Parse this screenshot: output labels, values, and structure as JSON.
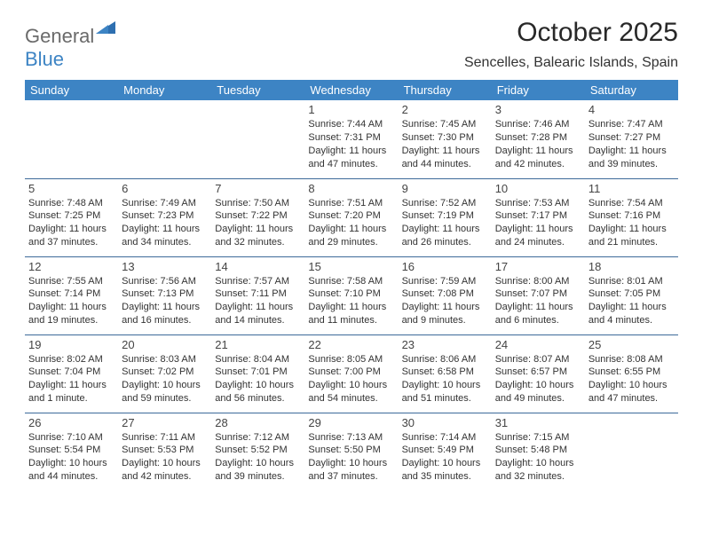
{
  "logo": {
    "part1": "General",
    "part2": "Blue"
  },
  "title": "October 2025",
  "subtitle": "Sencelles, Balearic Islands, Spain",
  "colors": {
    "header_bg": "#3d84c4",
    "header_fg": "#ffffff",
    "rule": "#3d6a9a"
  },
  "day_headers": [
    "Sunday",
    "Monday",
    "Tuesday",
    "Wednesday",
    "Thursday",
    "Friday",
    "Saturday"
  ],
  "weeks": [
    [
      null,
      null,
      null,
      {
        "num": "1",
        "sunrise": "Sunrise: 7:44 AM",
        "sunset": "Sunset: 7:31 PM",
        "day1": "Daylight: 11 hours",
        "day2": "and 47 minutes."
      },
      {
        "num": "2",
        "sunrise": "Sunrise: 7:45 AM",
        "sunset": "Sunset: 7:30 PM",
        "day1": "Daylight: 11 hours",
        "day2": "and 44 minutes."
      },
      {
        "num": "3",
        "sunrise": "Sunrise: 7:46 AM",
        "sunset": "Sunset: 7:28 PM",
        "day1": "Daylight: 11 hours",
        "day2": "and 42 minutes."
      },
      {
        "num": "4",
        "sunrise": "Sunrise: 7:47 AM",
        "sunset": "Sunset: 7:27 PM",
        "day1": "Daylight: 11 hours",
        "day2": "and 39 minutes."
      }
    ],
    [
      {
        "num": "5",
        "sunrise": "Sunrise: 7:48 AM",
        "sunset": "Sunset: 7:25 PM",
        "day1": "Daylight: 11 hours",
        "day2": "and 37 minutes."
      },
      {
        "num": "6",
        "sunrise": "Sunrise: 7:49 AM",
        "sunset": "Sunset: 7:23 PM",
        "day1": "Daylight: 11 hours",
        "day2": "and 34 minutes."
      },
      {
        "num": "7",
        "sunrise": "Sunrise: 7:50 AM",
        "sunset": "Sunset: 7:22 PM",
        "day1": "Daylight: 11 hours",
        "day2": "and 32 minutes."
      },
      {
        "num": "8",
        "sunrise": "Sunrise: 7:51 AM",
        "sunset": "Sunset: 7:20 PM",
        "day1": "Daylight: 11 hours",
        "day2": "and 29 minutes."
      },
      {
        "num": "9",
        "sunrise": "Sunrise: 7:52 AM",
        "sunset": "Sunset: 7:19 PM",
        "day1": "Daylight: 11 hours",
        "day2": "and 26 minutes."
      },
      {
        "num": "10",
        "sunrise": "Sunrise: 7:53 AM",
        "sunset": "Sunset: 7:17 PM",
        "day1": "Daylight: 11 hours",
        "day2": "and 24 minutes."
      },
      {
        "num": "11",
        "sunrise": "Sunrise: 7:54 AM",
        "sunset": "Sunset: 7:16 PM",
        "day1": "Daylight: 11 hours",
        "day2": "and 21 minutes."
      }
    ],
    [
      {
        "num": "12",
        "sunrise": "Sunrise: 7:55 AM",
        "sunset": "Sunset: 7:14 PM",
        "day1": "Daylight: 11 hours",
        "day2": "and 19 minutes."
      },
      {
        "num": "13",
        "sunrise": "Sunrise: 7:56 AM",
        "sunset": "Sunset: 7:13 PM",
        "day1": "Daylight: 11 hours",
        "day2": "and 16 minutes."
      },
      {
        "num": "14",
        "sunrise": "Sunrise: 7:57 AM",
        "sunset": "Sunset: 7:11 PM",
        "day1": "Daylight: 11 hours",
        "day2": "and 14 minutes."
      },
      {
        "num": "15",
        "sunrise": "Sunrise: 7:58 AM",
        "sunset": "Sunset: 7:10 PM",
        "day1": "Daylight: 11 hours",
        "day2": "and 11 minutes."
      },
      {
        "num": "16",
        "sunrise": "Sunrise: 7:59 AM",
        "sunset": "Sunset: 7:08 PM",
        "day1": "Daylight: 11 hours",
        "day2": "and 9 minutes."
      },
      {
        "num": "17",
        "sunrise": "Sunrise: 8:00 AM",
        "sunset": "Sunset: 7:07 PM",
        "day1": "Daylight: 11 hours",
        "day2": "and 6 minutes."
      },
      {
        "num": "18",
        "sunrise": "Sunrise: 8:01 AM",
        "sunset": "Sunset: 7:05 PM",
        "day1": "Daylight: 11 hours",
        "day2": "and 4 minutes."
      }
    ],
    [
      {
        "num": "19",
        "sunrise": "Sunrise: 8:02 AM",
        "sunset": "Sunset: 7:04 PM",
        "day1": "Daylight: 11 hours",
        "day2": "and 1 minute."
      },
      {
        "num": "20",
        "sunrise": "Sunrise: 8:03 AM",
        "sunset": "Sunset: 7:02 PM",
        "day1": "Daylight: 10 hours",
        "day2": "and 59 minutes."
      },
      {
        "num": "21",
        "sunrise": "Sunrise: 8:04 AM",
        "sunset": "Sunset: 7:01 PM",
        "day1": "Daylight: 10 hours",
        "day2": "and 56 minutes."
      },
      {
        "num": "22",
        "sunrise": "Sunrise: 8:05 AM",
        "sunset": "Sunset: 7:00 PM",
        "day1": "Daylight: 10 hours",
        "day2": "and 54 minutes."
      },
      {
        "num": "23",
        "sunrise": "Sunrise: 8:06 AM",
        "sunset": "Sunset: 6:58 PM",
        "day1": "Daylight: 10 hours",
        "day2": "and 51 minutes."
      },
      {
        "num": "24",
        "sunrise": "Sunrise: 8:07 AM",
        "sunset": "Sunset: 6:57 PM",
        "day1": "Daylight: 10 hours",
        "day2": "and 49 minutes."
      },
      {
        "num": "25",
        "sunrise": "Sunrise: 8:08 AM",
        "sunset": "Sunset: 6:55 PM",
        "day1": "Daylight: 10 hours",
        "day2": "and 47 minutes."
      }
    ],
    [
      {
        "num": "26",
        "sunrise": "Sunrise: 7:10 AM",
        "sunset": "Sunset: 5:54 PM",
        "day1": "Daylight: 10 hours",
        "day2": "and 44 minutes."
      },
      {
        "num": "27",
        "sunrise": "Sunrise: 7:11 AM",
        "sunset": "Sunset: 5:53 PM",
        "day1": "Daylight: 10 hours",
        "day2": "and 42 minutes."
      },
      {
        "num": "28",
        "sunrise": "Sunrise: 7:12 AM",
        "sunset": "Sunset: 5:52 PM",
        "day1": "Daylight: 10 hours",
        "day2": "and 39 minutes."
      },
      {
        "num": "29",
        "sunrise": "Sunrise: 7:13 AM",
        "sunset": "Sunset: 5:50 PM",
        "day1": "Daylight: 10 hours",
        "day2": "and 37 minutes."
      },
      {
        "num": "30",
        "sunrise": "Sunrise: 7:14 AM",
        "sunset": "Sunset: 5:49 PM",
        "day1": "Daylight: 10 hours",
        "day2": "and 35 minutes."
      },
      {
        "num": "31",
        "sunrise": "Sunrise: 7:15 AM",
        "sunset": "Sunset: 5:48 PM",
        "day1": "Daylight: 10 hours",
        "day2": "and 32 minutes."
      },
      null
    ]
  ]
}
